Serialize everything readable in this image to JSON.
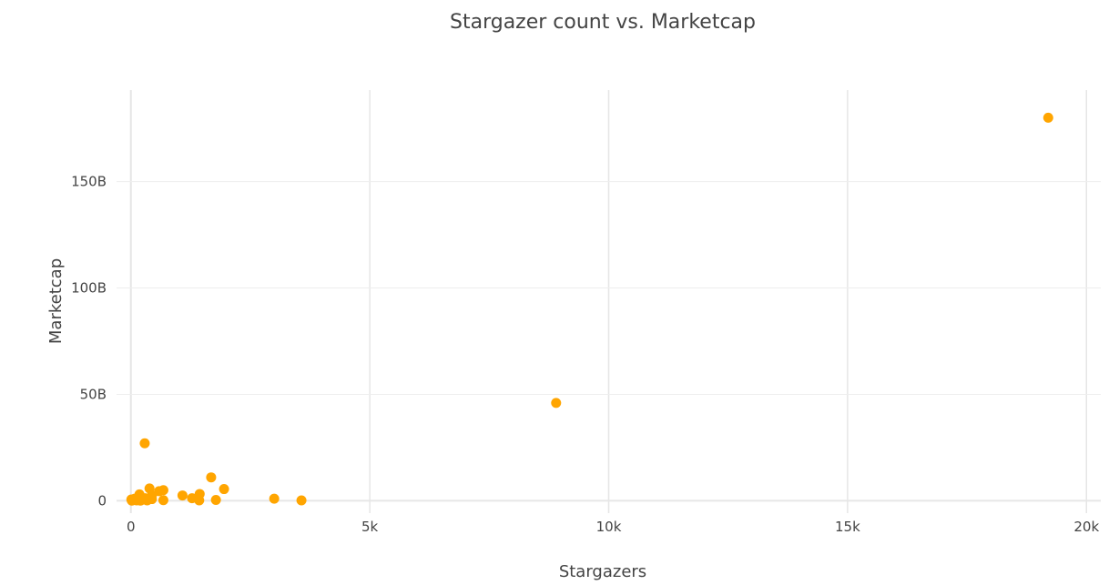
{
  "chart_data": {
    "type": "scatter",
    "title": "Stargazer count vs. Marketcap",
    "xlabel": "Stargazers",
    "ylabel": "Marketcap",
    "xlim": [
      -300,
      20300
    ],
    "ylim": [
      -13500000000,
      193000000000
    ],
    "grid": true,
    "legend": "none",
    "marker_color": "#FFA500",
    "x_ticks": [
      {
        "value": 0,
        "label": "0"
      },
      {
        "value": 5000,
        "label": "5k"
      },
      {
        "value": 10000,
        "label": "10k"
      },
      {
        "value": 15000,
        "label": "15k"
      },
      {
        "value": 20000,
        "label": "20k"
      }
    ],
    "y_ticks": [
      {
        "value": 0,
        "label": "0"
      },
      {
        "value": 50000000000,
        "label": "50B"
      },
      {
        "value": 100000000000,
        "label": "100B"
      },
      {
        "value": 150000000000,
        "label": "150B"
      }
    ],
    "series": [
      {
        "points": [
          {
            "x": 19200,
            "y": 180000000000
          },
          {
            "x": 8900,
            "y": 46000000000
          },
          {
            "x": 290,
            "y": 27000000000
          },
          {
            "x": 1680,
            "y": 11000000000
          },
          {
            "x": 1950,
            "y": 5500000000
          },
          {
            "x": 390,
            "y": 5800000000
          },
          {
            "x": 680,
            "y": 5000000000
          },
          {
            "x": 590,
            "y": 4500000000
          },
          {
            "x": 1440,
            "y": 3200000000
          },
          {
            "x": 1080,
            "y": 2500000000
          },
          {
            "x": 180,
            "y": 3000000000
          },
          {
            "x": 440,
            "y": 2400000000
          },
          {
            "x": 1280,
            "y": 1200000000
          },
          {
            "x": 3000,
            "y": 1000000000
          },
          {
            "x": 3570,
            "y": 200000000
          },
          {
            "x": 1780,
            "y": 400000000
          },
          {
            "x": 1430,
            "y": 200000000
          },
          {
            "x": 680,
            "y": 300000000
          },
          {
            "x": 440,
            "y": 800000000
          },
          {
            "x": 300,
            "y": 1200000000
          },
          {
            "x": 240,
            "y": 500000000
          },
          {
            "x": 160,
            "y": 800000000
          },
          {
            "x": 120,
            "y": 200000000
          },
          {
            "x": 60,
            "y": 400000000
          },
          {
            "x": 20,
            "y": 100000000
          },
          {
            "x": 10,
            "y": 600000000
          },
          {
            "x": 200,
            "y": 100000000
          },
          {
            "x": 340,
            "y": 200000000
          },
          {
            "x": 80,
            "y": 1000000000
          }
        ]
      }
    ]
  }
}
